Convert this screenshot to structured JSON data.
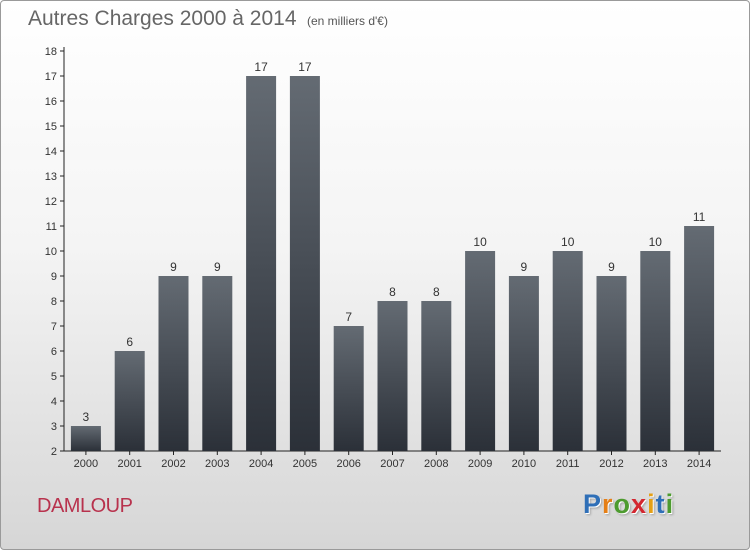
{
  "header": {
    "title": "Autres Charges 2000 à 2014",
    "unit_note": "(en milliers d'€)"
  },
  "commune": "DAMLOUP",
  "logo": {
    "letters": [
      {
        "char": "P",
        "color": "#2f6fb7"
      },
      {
        "char": "r",
        "color": "#e57f16"
      },
      {
        "char": "o",
        "color": "#4d9b2f"
      },
      {
        "char": "x",
        "color": "#d3262f"
      },
      {
        "char": "i",
        "color": "#e5a016"
      },
      {
        "char": "t",
        "color": "#2f6fb7"
      },
      {
        "char": "i",
        "color": "#4d9b2f"
      }
    ]
  },
  "chart_data": {
    "type": "bar",
    "categories": [
      "2000",
      "2001",
      "2002",
      "2003",
      "2004",
      "2005",
      "2006",
      "2007",
      "2008",
      "2009",
      "2010",
      "2011",
      "2012",
      "2013",
      "2014"
    ],
    "values": [
      3,
      6,
      9,
      9,
      17,
      17,
      7,
      8,
      8,
      10,
      9,
      10,
      9,
      10,
      11
    ],
    "title": "Autres Charges 2000 à 2014",
    "unit": "(en milliers d'€)",
    "ylim": [
      2,
      18
    ],
    "yticks": [
      2,
      3,
      4,
      5,
      6,
      7,
      8,
      9,
      10,
      11,
      12,
      13,
      14,
      15,
      16,
      17,
      18
    ],
    "grid": false,
    "bar_color_top": "#646b73",
    "bar_color_bottom": "#2b3038"
  }
}
